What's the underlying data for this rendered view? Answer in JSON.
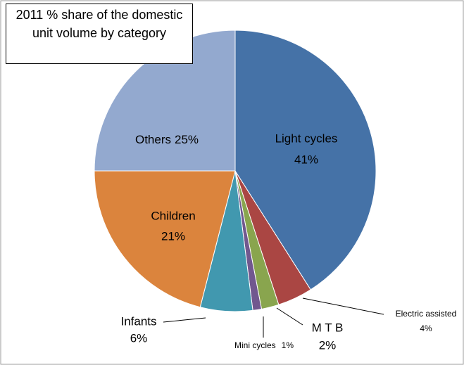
{
  "chart_data": {
    "type": "pie",
    "title": "2011  % share of the domestic unit volume by category",
    "categories": [
      "Light cycles",
      "Electric assisted",
      "M T B",
      "Mini cycles",
      "Infants",
      "Children",
      "Others"
    ],
    "values": [
      41,
      4,
      2,
      1,
      6,
      21,
      25
    ],
    "value_labels": [
      "41%",
      "4%",
      "2%",
      "1%",
      "6%",
      "21%",
      "25%"
    ],
    "colors": [
      "#4572a7",
      "#aa4643",
      "#89a54e",
      "#71588f",
      "#4198af",
      "#db843d",
      "#93a9cf"
    ]
  }
}
